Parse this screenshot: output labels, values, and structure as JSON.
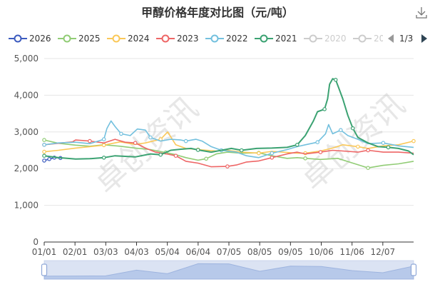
{
  "title": "甲醇价格年度对比图（元/吨）",
  "toolbar": {
    "download_icon": "download-icon"
  },
  "legend": {
    "items": [
      {
        "label": "2026",
        "color": "#3c5bbf",
        "active": true
      },
      {
        "label": "2025",
        "color": "#91cc75",
        "active": true
      },
      {
        "label": "2024",
        "color": "#fac858",
        "active": true
      },
      {
        "label": "2023",
        "color": "#ee6666",
        "active": true
      },
      {
        "label": "2022",
        "color": "#73c0de",
        "active": true
      },
      {
        "label": "2021",
        "color": "#3ba272",
        "active": true
      },
      {
        "label": "2020",
        "color": "#cccccc",
        "active": false
      },
      {
        "label": "20",
        "color": "#cccccc",
        "active": false
      }
    ],
    "page": "1/3",
    "prev_icon": "triangle-left-icon",
    "next_icon": "triangle-right-icon"
  },
  "watermark": "卓创资讯",
  "chart_data": {
    "type": "line",
    "title": "甲醇价格年度对比图（元/吨）",
    "x_ticks": [
      "01/01",
      "02/01",
      "03/03",
      "04/03",
      "05/04",
      "06/04",
      "07/05",
      "08/05",
      "09/05",
      "10/06",
      "11/06",
      "12/07"
    ],
    "y_ticks": [
      0,
      1000,
      2000,
      3000,
      4000,
      5000
    ],
    "y_tick_labels": [
      "0",
      "1,000",
      "2,000",
      "3,000",
      "4,000",
      "5,000"
    ],
    "ylim": [
      0,
      5000
    ],
    "xlim_days": [
      0,
      365
    ],
    "grid": true,
    "legend_position": "top",
    "series": [
      {
        "name": "2026",
        "color": "#3c5bbf",
        "points": [
          [
            0,
            2220
          ],
          [
            5,
            2260
          ],
          [
            10,
            2300
          ],
          [
            16,
            2290
          ]
        ]
      },
      {
        "name": "2025",
        "color": "#91cc75",
        "points": [
          [
            0,
            2780
          ],
          [
            14,
            2690
          ],
          [
            31,
            2640
          ],
          [
            45,
            2610
          ],
          [
            59,
            2650
          ],
          [
            75,
            2610
          ],
          [
            90,
            2560
          ],
          [
            105,
            2520
          ],
          [
            120,
            2440
          ],
          [
            130,
            2380
          ],
          [
            140,
            2300
          ],
          [
            152,
            2230
          ],
          [
            160,
            2270
          ],
          [
            170,
            2400
          ],
          [
            181,
            2450
          ],
          [
            195,
            2420
          ],
          [
            212,
            2430
          ],
          [
            225,
            2350
          ],
          [
            240,
            2280
          ],
          [
            250,
            2300
          ],
          [
            258,
            2280
          ],
          [
            273,
            2250
          ],
          [
            290,
            2280
          ],
          [
            305,
            2150
          ],
          [
            320,
            2020
          ],
          [
            335,
            2090
          ],
          [
            350,
            2130
          ],
          [
            365,
            2200
          ]
        ]
      },
      {
        "name": "2024",
        "color": "#fac858",
        "points": [
          [
            0,
            2460
          ],
          [
            14,
            2500
          ],
          [
            31,
            2560
          ],
          [
            45,
            2600
          ],
          [
            59,
            2640
          ],
          [
            75,
            2730
          ],
          [
            90,
            2660
          ],
          [
            100,
            2700
          ],
          [
            115,
            2800
          ],
          [
            122,
            3000
          ],
          [
            130,
            2650
          ],
          [
            140,
            2550
          ],
          [
            152,
            2520
          ],
          [
            170,
            2480
          ],
          [
            181,
            2500
          ],
          [
            195,
            2450
          ],
          [
            212,
            2420
          ],
          [
            225,
            2470
          ],
          [
            240,
            2440
          ],
          [
            250,
            2420
          ],
          [
            258,
            2420
          ],
          [
            273,
            2480
          ],
          [
            285,
            2560
          ],
          [
            295,
            2650
          ],
          [
            310,
            2600
          ],
          [
            320,
            2550
          ],
          [
            335,
            2620
          ],
          [
            350,
            2650
          ],
          [
            365,
            2750
          ]
        ]
      },
      {
        "name": "2023",
        "color": "#ee6666",
        "points": [
          [
            0,
            2650
          ],
          [
            14,
            2690
          ],
          [
            28,
            2730
          ],
          [
            31,
            2780
          ],
          [
            45,
            2750
          ],
          [
            59,
            2700
          ],
          [
            70,
            2800
          ],
          [
            80,
            2720
          ],
          [
            90,
            2700
          ],
          [
            100,
            2560
          ],
          [
            110,
            2450
          ],
          [
            121,
            2400
          ],
          [
            130,
            2350
          ],
          [
            140,
            2200
          ],
          [
            152,
            2150
          ],
          [
            165,
            2050
          ],
          [
            181,
            2060
          ],
          [
            190,
            2100
          ],
          [
            200,
            2180
          ],
          [
            212,
            2210
          ],
          [
            225,
            2300
          ],
          [
            240,
            2400
          ],
          [
            250,
            2450
          ],
          [
            258,
            2400
          ],
          [
            273,
            2450
          ],
          [
            285,
            2500
          ],
          [
            300,
            2470
          ],
          [
            310,
            2450
          ],
          [
            320,
            2500
          ],
          [
            335,
            2450
          ],
          [
            350,
            2450
          ],
          [
            365,
            2420
          ]
        ]
      },
      {
        "name": "2022",
        "color": "#73c0de",
        "points": [
          [
            0,
            2650
          ],
          [
            14,
            2700
          ],
          [
            31,
            2720
          ],
          [
            45,
            2680
          ],
          [
            59,
            2800
          ],
          [
            62,
            3100
          ],
          [
            66,
            3300
          ],
          [
            70,
            3150
          ],
          [
            76,
            2950
          ],
          [
            85,
            2900
          ],
          [
            92,
            3080
          ],
          [
            100,
            3050
          ],
          [
            105,
            2850
          ],
          [
            115,
            2750
          ],
          [
            125,
            2800
          ],
          [
            135,
            2780
          ],
          [
            140,
            2750
          ],
          [
            150,
            2800
          ],
          [
            156,
            2750
          ],
          [
            165,
            2600
          ],
          [
            175,
            2500
          ],
          [
            190,
            2450
          ],
          [
            200,
            2350
          ],
          [
            212,
            2300
          ],
          [
            225,
            2420
          ],
          [
            240,
            2520
          ],
          [
            250,
            2600
          ],
          [
            258,
            2650
          ],
          [
            270,
            2720
          ],
          [
            278,
            2950
          ],
          [
            281,
            3200
          ],
          [
            285,
            2950
          ],
          [
            293,
            3050
          ],
          [
            300,
            2900
          ],
          [
            310,
            2800
          ],
          [
            320,
            2680
          ],
          [
            335,
            2700
          ],
          [
            350,
            2620
          ],
          [
            365,
            2580
          ]
        ]
      },
      {
        "name": "2021",
        "color": "#3ba272",
        "points": [
          [
            0,
            2350
          ],
          [
            14,
            2300
          ],
          [
            31,
            2260
          ],
          [
            45,
            2270
          ],
          [
            59,
            2300
          ],
          [
            70,
            2350
          ],
          [
            90,
            2320
          ],
          [
            105,
            2400
          ],
          [
            115,
            2380
          ],
          [
            125,
            2500
          ],
          [
            135,
            2530
          ],
          [
            145,
            2550
          ],
          [
            152,
            2510
          ],
          [
            165,
            2450
          ],
          [
            175,
            2500
          ],
          [
            185,
            2550
          ],
          [
            195,
            2500
          ],
          [
            210,
            2550
          ],
          [
            225,
            2560
          ],
          [
            240,
            2580
          ],
          [
            250,
            2650
          ],
          [
            258,
            2900
          ],
          [
            266,
            3300
          ],
          [
            270,
            3550
          ],
          [
            277,
            3620
          ],
          [
            280,
            3900
          ],
          [
            282,
            4300
          ],
          [
            285,
            4450
          ],
          [
            288,
            4420
          ],
          [
            291,
            4200
          ],
          [
            295,
            3900
          ],
          [
            300,
            3450
          ],
          [
            305,
            3100
          ],
          [
            310,
            2850
          ],
          [
            320,
            2700
          ],
          [
            330,
            2600
          ],
          [
            340,
            2580
          ],
          [
            350,
            2550
          ],
          [
            360,
            2480
          ],
          [
            365,
            2380
          ]
        ]
      }
    ]
  },
  "datazoom": {
    "start_percent": 0,
    "end_percent": 100,
    "preview": [
      0.06,
      0.07,
      0.08,
      0.48,
      0.23,
      0.93,
      0.92,
      0.4,
      0.76,
      0.74,
      0.45,
      0.3,
      0.76
    ]
  }
}
